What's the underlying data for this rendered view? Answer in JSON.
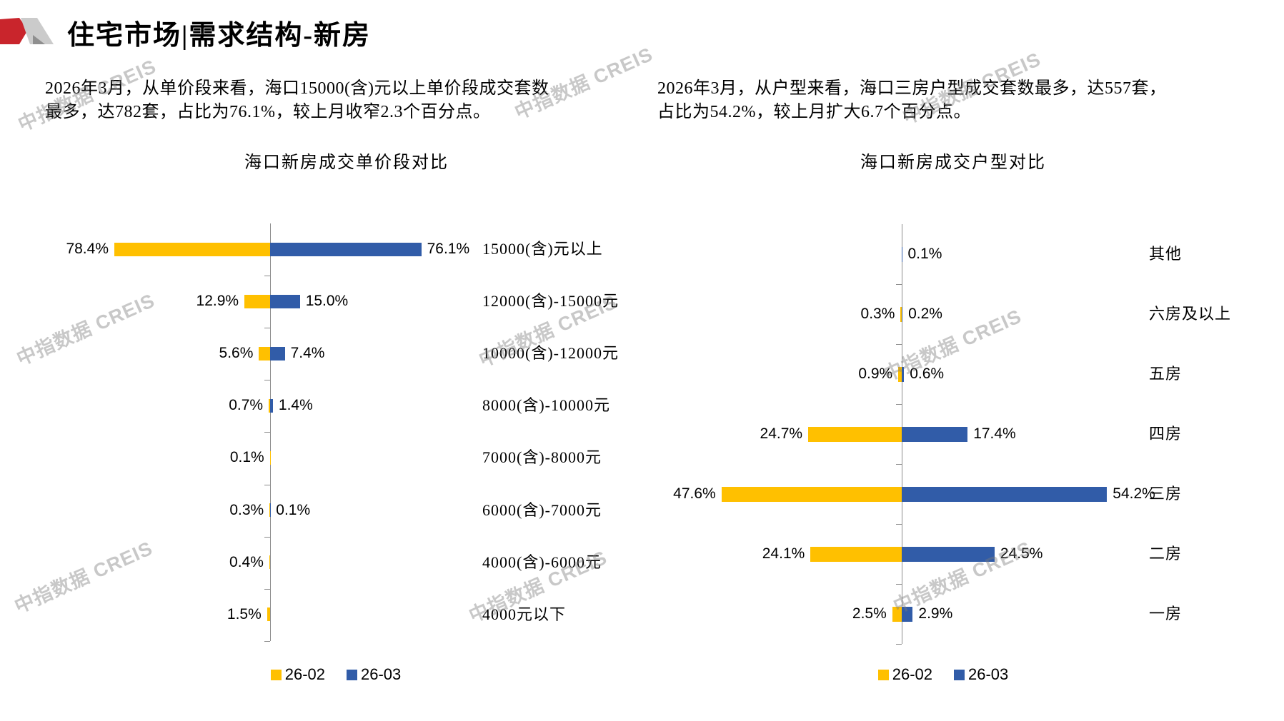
{
  "page": {
    "title": "住宅市场|需求结构-新房"
  },
  "watermark": {
    "text": "中指数据 CREIS"
  },
  "sections": {
    "left": {
      "summary_lines": [
        "2026年3月，从单价段来看，海口15000(含)元以上单价段成交套数",
        "最多，达782套，占比为76.1%，较上月收窄2.3个百分点。"
      ]
    },
    "right": {
      "summary_lines": [
        "2026年3月，从户型来看，海口三房户型成交套数最多，达557套，",
        "占比为54.2%，较上月扩大6.7个百分点。"
      ]
    }
  },
  "colors": {
    "series_02_yellow": "#FFC000",
    "series_03_blue": "#315CA8",
    "axis_gray": "#8C8C8C",
    "logo_red": "#C9252C",
    "logo_gray_light": "#CBCBCB",
    "logo_gray_dark": "#8F8F8F",
    "watermark_gray": "#7D7D7D"
  },
  "chart_data": [
    {
      "type": "bar",
      "subtype": "butterfly-tornado",
      "title": "海口新房成交单价段对比",
      "value_unit": "%",
      "grid": false,
      "legend_position": "bottom",
      "categories": [
        "15000(含)元以上",
        "12000(含)-15000元",
        "10000(含)-12000元",
        "8000(含)-10000元",
        "7000(含)-8000元",
        "6000(含)-7000元",
        "4000(含)-6000元",
        "4000元以下"
      ],
      "series": [
        {
          "name": "26-02",
          "side": "left",
          "color": "#FFC000",
          "values": [
            78.4,
            12.9,
            5.6,
            0.7,
            0.1,
            0.3,
            0.4,
            1.5
          ]
        },
        {
          "name": "26-03",
          "side": "right",
          "color": "#315CA8",
          "values": [
            76.1,
            15.0,
            7.4,
            1.4,
            null,
            0.1,
            null,
            null
          ]
        }
      ],
      "xlim": [
        0,
        80
      ]
    },
    {
      "type": "bar",
      "subtype": "butterfly-tornado",
      "title": "海口新房成交户型对比",
      "value_unit": "%",
      "grid": false,
      "legend_position": "bottom",
      "categories": [
        "其他",
        "六房及以上",
        "五房",
        "四房",
        "三房",
        "二房",
        "一房"
      ],
      "series": [
        {
          "name": "26-02",
          "side": "left",
          "color": "#FFC000",
          "values": [
            null,
            0.3,
            0.9,
            24.7,
            47.6,
            24.1,
            2.5
          ]
        },
        {
          "name": "26-03",
          "side": "right",
          "color": "#315CA8",
          "values": [
            0.1,
            0.2,
            0.6,
            17.4,
            54.2,
            24.5,
            2.9
          ]
        }
      ],
      "xlim": [
        0,
        60
      ]
    }
  ]
}
